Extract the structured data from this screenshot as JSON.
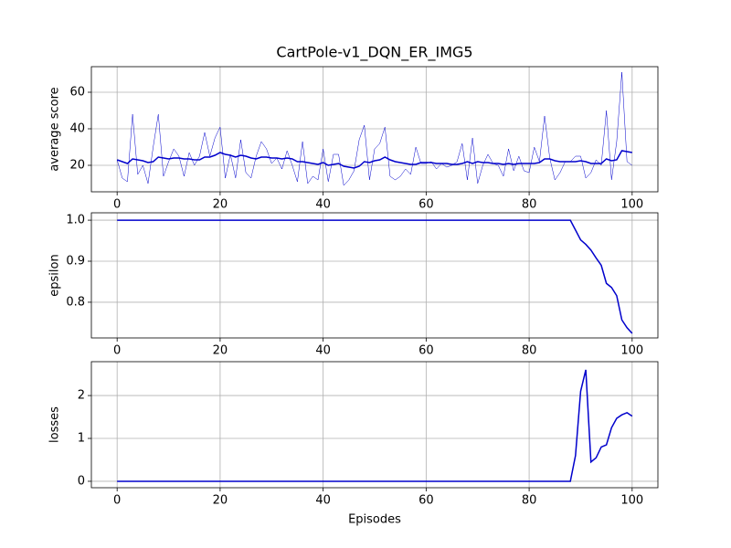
{
  "chart_data": [
    {
      "type": "line",
      "title": "CartPole-v1_DQN_ER_IMG5",
      "ylabel": "average score",
      "grid": true,
      "xlim": [
        -5,
        105
      ],
      "xticks": [
        0,
        20,
        40,
        60,
        80,
        100
      ],
      "ylim": [
        5.5,
        74
      ],
      "yticks": [
        20,
        40,
        60
      ],
      "x": [
        0,
        1,
        2,
        3,
        4,
        5,
        6,
        7,
        8,
        9,
        10,
        11,
        12,
        13,
        14,
        15,
        16,
        17,
        18,
        19,
        20,
        21,
        22,
        23,
        24,
        25,
        26,
        27,
        28,
        29,
        30,
        31,
        32,
        33,
        34,
        35,
        36,
        37,
        38,
        39,
        40,
        41,
        42,
        43,
        44,
        45,
        46,
        47,
        48,
        49,
        50,
        51,
        52,
        53,
        54,
        55,
        56,
        57,
        58,
        59,
        60,
        61,
        62,
        63,
        64,
        65,
        66,
        67,
        68,
        69,
        70,
        71,
        72,
        73,
        74,
        75,
        76,
        77,
        78,
        79,
        80,
        81,
        82,
        83,
        84,
        85,
        86,
        87,
        88,
        89,
        90,
        91,
        92,
        93,
        94,
        95,
        96,
        97,
        98,
        99,
        100
      ],
      "series": [
        {
          "color": "#0000cc",
          "linewidth": 0.5,
          "values": [
            23,
            13,
            11,
            48,
            15,
            20,
            10,
            30,
            48,
            14,
            22,
            29,
            25,
            14,
            27,
            20,
            25,
            38,
            25,
            35,
            41,
            13,
            26,
            13,
            34,
            16,
            13,
            25,
            33,
            29,
            21,
            24,
            18,
            28,
            20,
            11,
            33,
            10,
            14,
            12,
            29,
            11,
            26,
            26,
            9,
            12,
            17,
            34,
            42,
            12,
            29,
            32,
            41,
            14,
            12,
            14,
            18,
            15,
            30,
            21,
            21,
            22,
            18,
            21,
            19,
            20,
            22,
            32,
            12,
            35,
            10,
            20,
            26,
            21,
            20,
            14,
            29,
            17,
            25,
            17,
            16,
            30,
            22,
            47,
            24,
            12,
            16,
            22,
            22,
            25,
            25,
            13,
            16,
            23,
            20,
            50,
            12,
            33,
            71,
            22,
            20
          ]
        },
        {
          "color": "#0000cc",
          "linewidth": 1.5,
          "values": [
            23,
            22,
            21,
            23.5,
            23,
            22.5,
            21.5,
            22,
            24.5,
            24,
            23.5,
            24,
            24,
            23.5,
            23.5,
            23,
            23,
            24.5,
            24.5,
            25.5,
            27,
            26,
            25.5,
            24.5,
            25.5,
            25,
            24,
            23.5,
            24.5,
            24.5,
            24,
            24,
            23.5,
            24,
            23.5,
            22,
            22,
            21.5,
            21,
            20.5,
            21.5,
            20,
            20.5,
            21,
            19.5,
            19,
            18.5,
            19.5,
            22,
            21.5,
            22.5,
            23,
            24.5,
            23,
            22,
            21.5,
            21,
            20.5,
            20.5,
            21.5,
            21.5,
            21.5,
            21,
            21,
            21,
            20.5,
            20.5,
            21,
            22,
            21,
            22,
            21.5,
            21.5,
            21,
            21,
            20.5,
            21,
            20.5,
            21,
            21,
            21,
            21,
            21.5,
            23.5,
            23.5,
            22.5,
            22,
            22,
            22,
            22,
            22.5,
            22,
            21,
            21,
            21,
            23.5,
            22.5,
            23,
            28,
            27.5,
            27
          ]
        }
      ]
    },
    {
      "type": "line",
      "ylabel": "epsilon",
      "grid": true,
      "xlim": [
        -5,
        105
      ],
      "xticks": [
        0,
        20,
        40,
        60,
        80,
        100
      ],
      "ylim": [
        0.713,
        1.018
      ],
      "yticks": [
        {
          "value": 1,
          "label": "1.0"
        },
        0.9,
        0.8
      ],
      "x": [
        0,
        1,
        2,
        3,
        4,
        5,
        6,
        7,
        8,
        9,
        10,
        11,
        12,
        13,
        14,
        15,
        16,
        17,
        18,
        19,
        20,
        21,
        22,
        23,
        24,
        25,
        26,
        27,
        28,
        29,
        30,
        31,
        32,
        33,
        34,
        35,
        36,
        37,
        38,
        39,
        40,
        41,
        42,
        43,
        44,
        45,
        46,
        47,
        48,
        49,
        50,
        51,
        52,
        53,
        54,
        55,
        56,
        57,
        58,
        59,
        60,
        61,
        62,
        63,
        64,
        65,
        66,
        67,
        68,
        69,
        70,
        71,
        72,
        73,
        74,
        75,
        76,
        77,
        78,
        79,
        80,
        81,
        82,
        83,
        84,
        85,
        86,
        87,
        88,
        89,
        90,
        91,
        92,
        93,
        94,
        95,
        96,
        97,
        98,
        99,
        100
      ],
      "series": [
        {
          "color": "#0000cc",
          "linewidth": 1.5,
          "values": [
            1,
            1,
            1,
            1,
            1,
            1,
            1,
            1,
            1,
            1,
            1,
            1,
            1,
            1,
            1,
            1,
            1,
            1,
            1,
            1,
            1,
            1,
            1,
            1,
            1,
            1,
            1,
            1,
            1,
            1,
            1,
            1,
            1,
            1,
            1,
            1,
            1,
            1,
            1,
            1,
            1,
            1,
            1,
            1,
            1,
            1,
            1,
            1,
            1,
            1,
            1,
            1,
            1,
            1,
            1,
            1,
            1,
            1,
            1,
            1,
            1,
            1,
            1,
            1,
            1,
            1,
            1,
            1,
            1,
            1,
            1,
            1,
            1,
            1,
            1,
            1,
            1,
            1,
            1,
            1,
            1,
            1,
            1,
            1,
            1,
            1,
            1,
            1,
            1,
            0.976,
            0.952,
            0.941,
            0.927,
            0.908,
            0.89,
            0.846,
            0.836,
            0.816,
            0.757,
            0.738,
            0.724
          ]
        }
      ]
    },
    {
      "type": "line",
      "ylabel": "losses",
      "xlabel": "Episodes",
      "grid": true,
      "xlim": [
        -5,
        105
      ],
      "xticks": [
        0,
        20,
        40,
        60,
        80,
        100
      ],
      "ylim": [
        -0.15,
        2.79
      ],
      "yticks": [
        0,
        1,
        2
      ],
      "x": [
        0,
        1,
        2,
        3,
        4,
        5,
        6,
        7,
        8,
        9,
        10,
        11,
        12,
        13,
        14,
        15,
        16,
        17,
        18,
        19,
        20,
        21,
        22,
        23,
        24,
        25,
        26,
        27,
        28,
        29,
        30,
        31,
        32,
        33,
        34,
        35,
        36,
        37,
        38,
        39,
        40,
        41,
        42,
        43,
        44,
        45,
        46,
        47,
        48,
        49,
        50,
        51,
        52,
        53,
        54,
        55,
        56,
        57,
        58,
        59,
        60,
        61,
        62,
        63,
        64,
        65,
        66,
        67,
        68,
        69,
        70,
        71,
        72,
        73,
        74,
        75,
        76,
        77,
        78,
        79,
        80,
        81,
        82,
        83,
        84,
        85,
        86,
        87,
        88,
        89,
        90,
        91,
        92,
        93,
        94,
        95,
        96,
        97,
        98,
        99,
        100
      ],
      "series": [
        {
          "color": "#0000cc",
          "linewidth": 1.5,
          "values": [
            0,
            0,
            0,
            0,
            0,
            0,
            0,
            0,
            0,
            0,
            0,
            0,
            0,
            0,
            0,
            0,
            0,
            0,
            0,
            0,
            0,
            0,
            0,
            0,
            0,
            0,
            0,
            0,
            0,
            0,
            0,
            0,
            0,
            0,
            0,
            0,
            0,
            0,
            0,
            0,
            0,
            0,
            0,
            0,
            0,
            0,
            0,
            0,
            0,
            0,
            0,
            0,
            0,
            0,
            0,
            0,
            0,
            0,
            0,
            0,
            0,
            0,
            0,
            0,
            0,
            0,
            0,
            0,
            0,
            0,
            0,
            0,
            0,
            0,
            0,
            0,
            0,
            0,
            0,
            0,
            0,
            0,
            0,
            0,
            0,
            0,
            0,
            0,
            0,
            0.6,
            2.1,
            2.6,
            0.45,
            0.55,
            0.8,
            0.85,
            1.25,
            1.47,
            1.55,
            1.6,
            1.52
          ]
        }
      ]
    }
  ]
}
